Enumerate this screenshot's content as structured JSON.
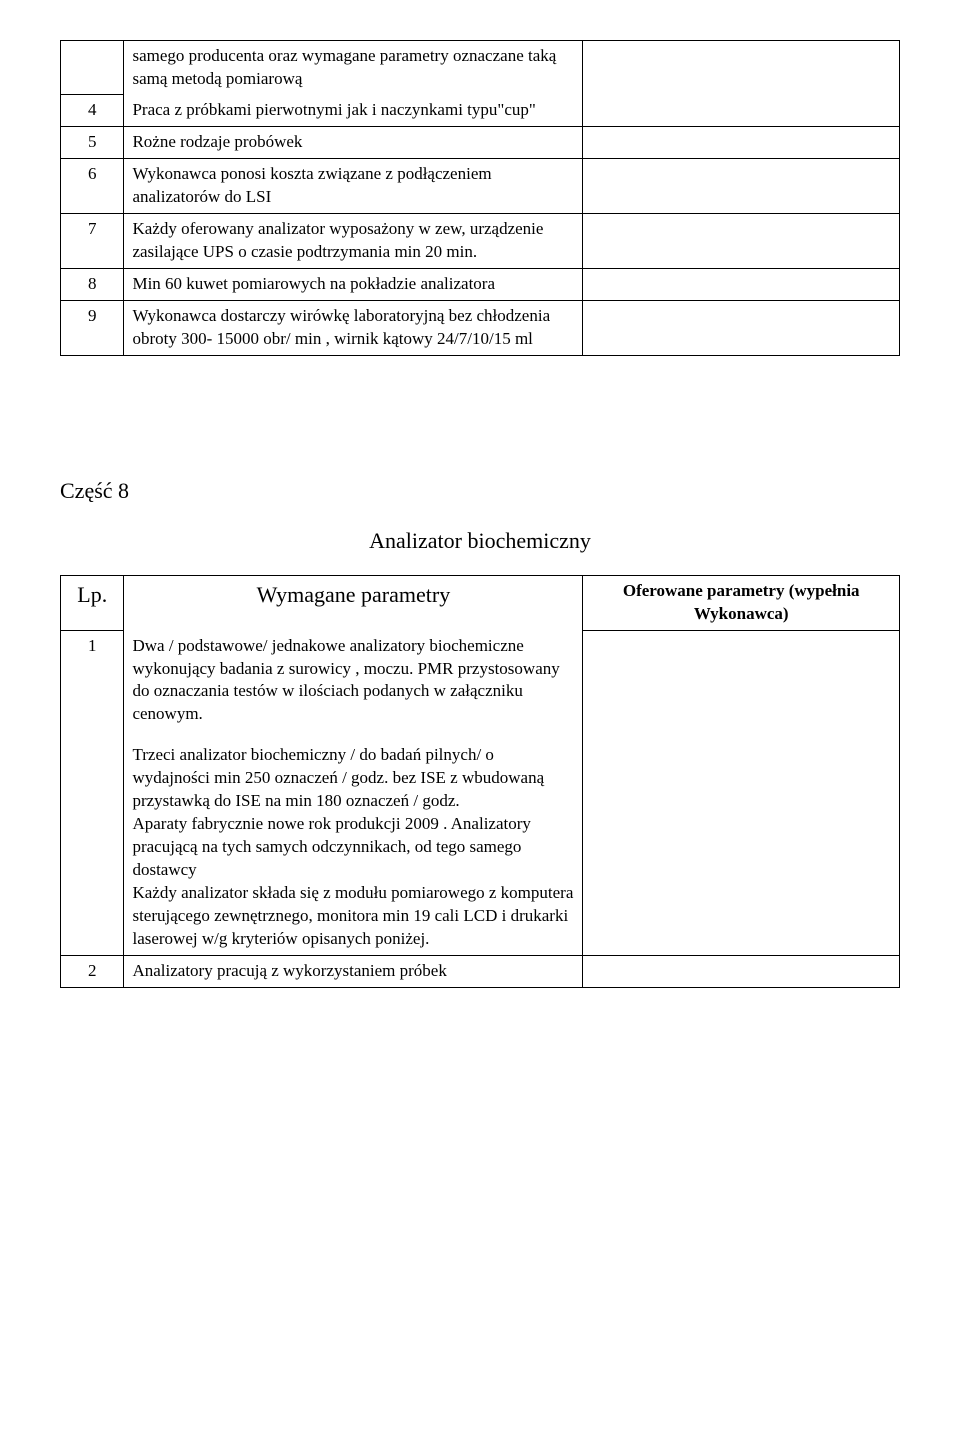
{
  "table1": {
    "rows": [
      {
        "num": "",
        "desc": "samego producenta  oraz  wymagane parametry oznaczane taką samą metodą  pomiarową"
      },
      {
        "num": "4",
        "desc": "Praca z próbkami pierwotnymi jak i naczynkami typu\"cup\""
      },
      {
        "num": "5",
        "desc": "Rożne rodzaje probówek"
      },
      {
        "num": "6",
        "desc": "Wykonawca ponosi koszta związane z podłączeniem analizatorów  do LSI"
      },
      {
        "num": "7",
        "desc": "Każdy  oferowany analizator wyposażony  w zew, urządzenie zasilające UPS o czasie podtrzymania min 20 min."
      },
      {
        "num": "8",
        "desc": "Min 60 kuwet pomiarowych na pokładzie  analizatora"
      },
      {
        "num": "9",
        "desc": "Wykonawca dostarczy wirówkę  laboratoryjną   bez chłodzenia obroty  300- 15000 obr/ min , wirnik kątowy  24/7/10/15 ml"
      }
    ]
  },
  "section": {
    "part_label": "Część 8",
    "subtitle": "Analizator biochemiczny"
  },
  "table2": {
    "header_left": "Lp.",
    "header_mid": "Wymagane parametry",
    "header_right": "Oferowane parametry (wypełnia Wykonawca)",
    "row1": {
      "num": "1",
      "para1": " Dwa / podstawowe/ jednakowe analizatory biochemiczne wykonujący badania z surowicy , moczu. PMR  przystosowany do oznaczania testów w ilościach podanych w załączniku cenowym.",
      "para2": "Trzeci  analizator  biochemiczny / do badań pilnych/ o wydajności min  250 oznaczeń / godz.  bez ISE  z wbudowaną przystawką do ISE na min 180 oznaczeń / godz.",
      "para3": "Aparaty fabrycznie nowe rok produkcji 2009 . Analizatory    pracującą na tych samych odczynnikach, od tego samego dostawcy",
      "para4": " Każdy analizator składa się z modułu pomiarowego z komputera sterującego zewnętrznego, monitora min 19 cali LCD i drukarki laserowej  w/g kryteriów opisanych poniżej."
    },
    "row2": {
      "num": "2",
      "desc": " Analizatory pracują z wykorzystaniem próbek"
    }
  }
}
